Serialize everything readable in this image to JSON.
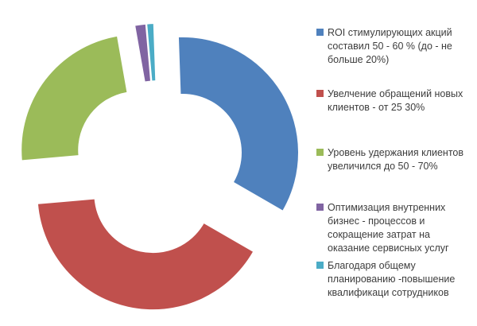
{
  "chart_data": {
    "type": "pie",
    "subtype": "doughnut-exploded",
    "title": "",
    "legend_position": "right",
    "start_angle_deg": -2,
    "hole_ratio": 0.51,
    "exploded": true,
    "background_color": "#ffffff",
    "legend_text_color": "#3d3d3d",
    "slices": [
      {
        "label": "ROI стимулирующих акций составил 50 - 60 % (до - не больше 20%)",
        "percent": 33.9,
        "angle_deg": 122,
        "color": "#4F81BD"
      },
      {
        "label": "Увелчение обращений новых клиентов - от 25 30%",
        "percent": 40.3,
        "angle_deg": 145,
        "color": "#C0504D"
      },
      {
        "label": "Уровень удержания клиентов увеличился до 50 - 70%",
        "percent": 23.6,
        "angle_deg": 85,
        "color": "#9BBB59"
      },
      {
        "label": "Оптимизация внутренних бизнес - процессов и сокращение затрат на оказание сервисных услуг",
        "percent": 1.4,
        "angle_deg": 5,
        "color": "#8064A2"
      },
      {
        "label": "Благодаря общему планированию -повышение квалификаци сотрудников",
        "percent": 0.8,
        "angle_deg": 3,
        "color": "#4BACC6"
      }
    ]
  }
}
